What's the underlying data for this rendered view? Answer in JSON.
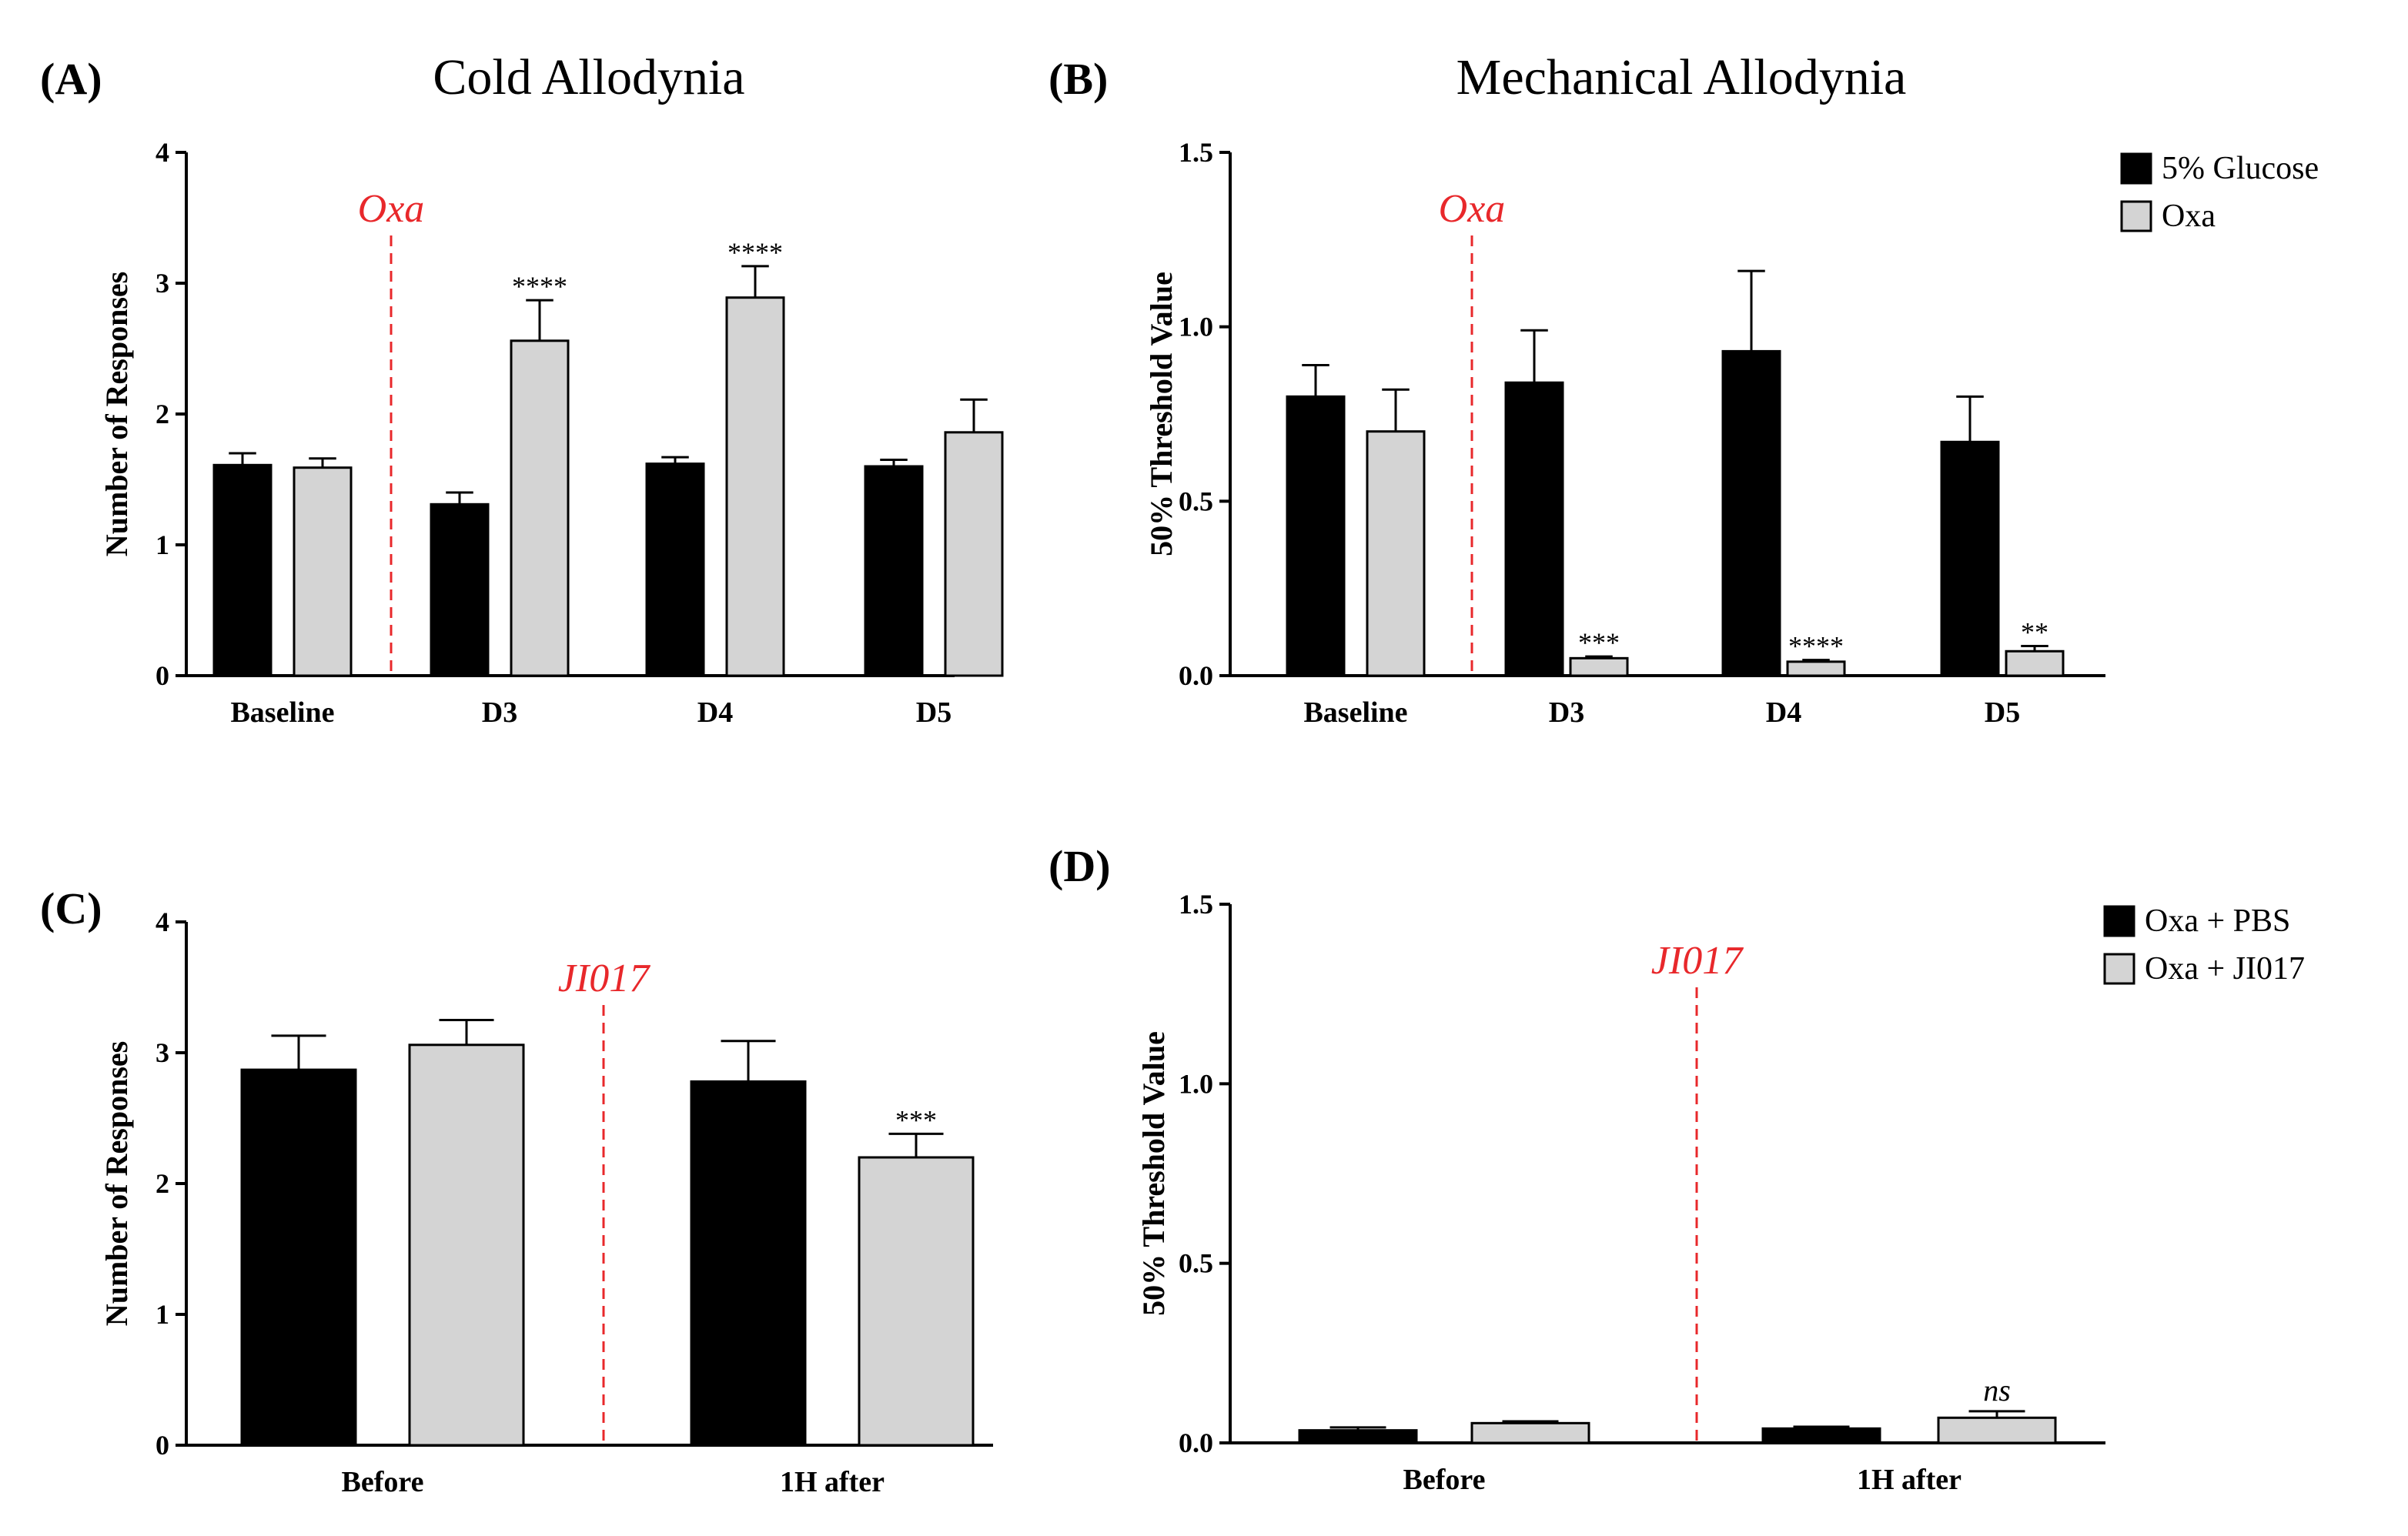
{
  "colors": {
    "black_bar": "#000000",
    "grey_bar": "#d4d4d4",
    "annotation": "#e8282b"
  },
  "chart_data": [
    {
      "id": "A",
      "type": "bar",
      "panel_label": "(A)",
      "title": "Cold  Allodynia",
      "xlabel": "",
      "ylabel": "Number of Responses",
      "ylim": [
        0,
        4
      ],
      "yticks": [
        0,
        1,
        2,
        3,
        4
      ],
      "ytick_labels": [
        "0",
        "1",
        "2",
        "3",
        "4"
      ],
      "categories": [
        "Baseline",
        "D3",
        "D4",
        "D5"
      ],
      "series": [
        {
          "name": "5% Glucose",
          "color": "#000000",
          "values": [
            1.61,
            1.31,
            1.62,
            1.6
          ],
          "errors": [
            0.09,
            0.09,
            0.05,
            0.05
          ],
          "significance": [
            "",
            "",
            "",
            ""
          ]
        },
        {
          "name": "Oxa",
          "color": "#d4d4d4",
          "values": [
            1.59,
            2.56,
            2.89,
            1.86
          ],
          "errors": [
            0.07,
            0.31,
            0.24,
            0.25
          ],
          "significance": [
            "",
            "****",
            "****",
            ""
          ]
        }
      ],
      "annotation": {
        "text": "Oxa",
        "after_category": 0
      }
    },
    {
      "id": "B",
      "type": "bar",
      "panel_label": "(B)",
      "title": "Mechanical Allodynia",
      "xlabel": "",
      "ylabel": "50% Threshold Value",
      "ylim": [
        0,
        1.5
      ],
      "yticks": [
        0,
        0.5,
        1.0,
        1.5
      ],
      "ytick_labels": [
        "0.0",
        "0.5",
        "1.0",
        "1.5"
      ],
      "categories": [
        "Baseline",
        "D3",
        "D4",
        "D5"
      ],
      "series": [
        {
          "name": "5% Glucose",
          "color": "#000000",
          "values": [
            0.8,
            0.84,
            0.93,
            0.67
          ],
          "errors": [
            0.09,
            0.15,
            0.23,
            0.13
          ],
          "significance": [
            "",
            "",
            "",
            ""
          ]
        },
        {
          "name": "Oxa",
          "color": "#d4d4d4",
          "values": [
            0.7,
            0.05,
            0.04,
            0.07
          ],
          "errors": [
            0.12,
            0.005,
            0.005,
            0.015
          ],
          "significance": [
            "",
            "***",
            "****",
            "**"
          ]
        }
      ],
      "annotation": {
        "text": "Oxa",
        "after_category": 0
      },
      "legend": {
        "position": "top-right",
        "entries": [
          "5% Glucose",
          "Oxa"
        ]
      }
    },
    {
      "id": "C",
      "type": "bar",
      "panel_label": "(C)",
      "title": "",
      "xlabel": "",
      "ylabel": "Number of Responses",
      "ylim": [
        0,
        4
      ],
      "yticks": [
        0,
        1,
        2,
        3,
        4
      ],
      "ytick_labels": [
        "0",
        "1",
        "2",
        "3",
        "4"
      ],
      "categories": [
        "Before",
        "1H after"
      ],
      "series": [
        {
          "name": "Oxa + PBS",
          "color": "#000000",
          "values": [
            2.87,
            2.78
          ],
          "errors": [
            0.26,
            0.31
          ],
          "significance": [
            "",
            ""
          ]
        },
        {
          "name": "Oxa + JI017",
          "color": "#d4d4d4",
          "values": [
            3.06,
            2.2
          ],
          "errors": [
            0.19,
            0.18
          ],
          "significance": [
            "",
            "***"
          ]
        }
      ],
      "annotation": {
        "text": "JI017",
        "after_category": 0
      }
    },
    {
      "id": "D",
      "type": "bar",
      "panel_label": "(D)",
      "title": "",
      "xlabel": "",
      "ylabel": "50% Threshold Value",
      "ylim": [
        0,
        1.5
      ],
      "yticks": [
        0,
        0.5,
        1.0,
        1.5
      ],
      "ytick_labels": [
        "0.0",
        "0.5",
        "1.0",
        "1.5"
      ],
      "categories": [
        "Before",
        "1H after"
      ],
      "series": [
        {
          "name": "Oxa + PBS",
          "color": "#000000",
          "values": [
            0.035,
            0.04
          ],
          "errors": [
            0.008,
            0.005
          ],
          "significance": [
            "",
            ""
          ]
        },
        {
          "name": "Oxa + JI017",
          "color": "#d4d4d4",
          "values": [
            0.055,
            0.07
          ],
          "errors": [
            0.005,
            0.018
          ],
          "significance": [
            "",
            "ns"
          ]
        }
      ],
      "annotation": {
        "text": "JI017",
        "after_category": 0
      },
      "legend": {
        "position": "top-right",
        "entries": [
          "Oxa + PBS",
          "Oxa + JI017"
        ]
      }
    }
  ]
}
